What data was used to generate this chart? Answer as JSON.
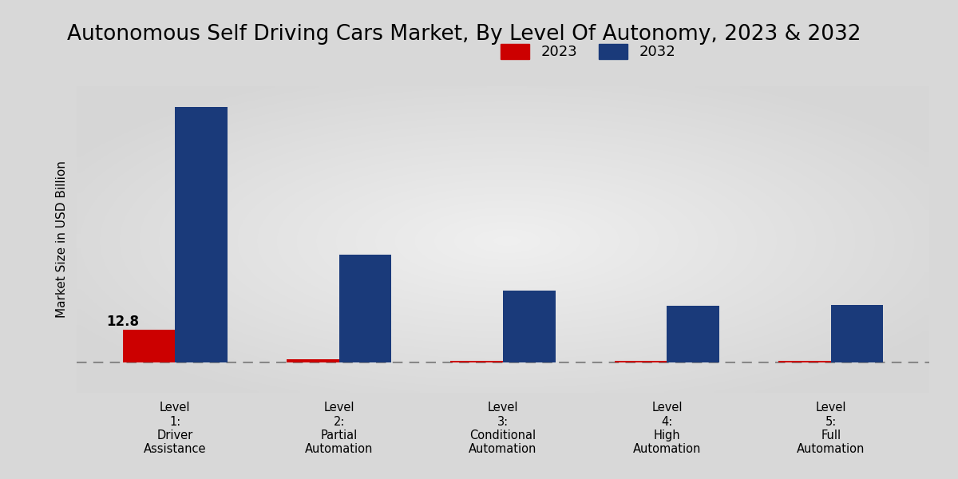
{
  "title": "Autonomous Self Driving Cars Market, By Level Of Autonomy, 2023 & 2032",
  "ylabel": "Market Size in USD Billion",
  "categories": [
    "Level\n1:\nDriver\nAssistance",
    "Level\n2:\nPartial\nAutomation",
    "Level\n3:\nConditional\nAutomation",
    "Level\n4:\nHigh\nAutomation",
    "Level\n5:\nFull\nAutomation"
  ],
  "values_2023": [
    12.8,
    1.2,
    0.6,
    0.5,
    0.4
  ],
  "values_2032": [
    100.0,
    42.0,
    28.0,
    22.0,
    22.5
  ],
  "color_2023": "#cc0000",
  "color_2032": "#1a3a7a",
  "annotation_text": "12.8",
  "bar_width": 0.32,
  "bg_left": "#c0c0c0",
  "bg_center": "#e8e8e8",
  "legend_labels": [
    "2023",
    "2032"
  ],
  "title_fontsize": 19,
  "label_fontsize": 11,
  "tick_fontsize": 10.5
}
